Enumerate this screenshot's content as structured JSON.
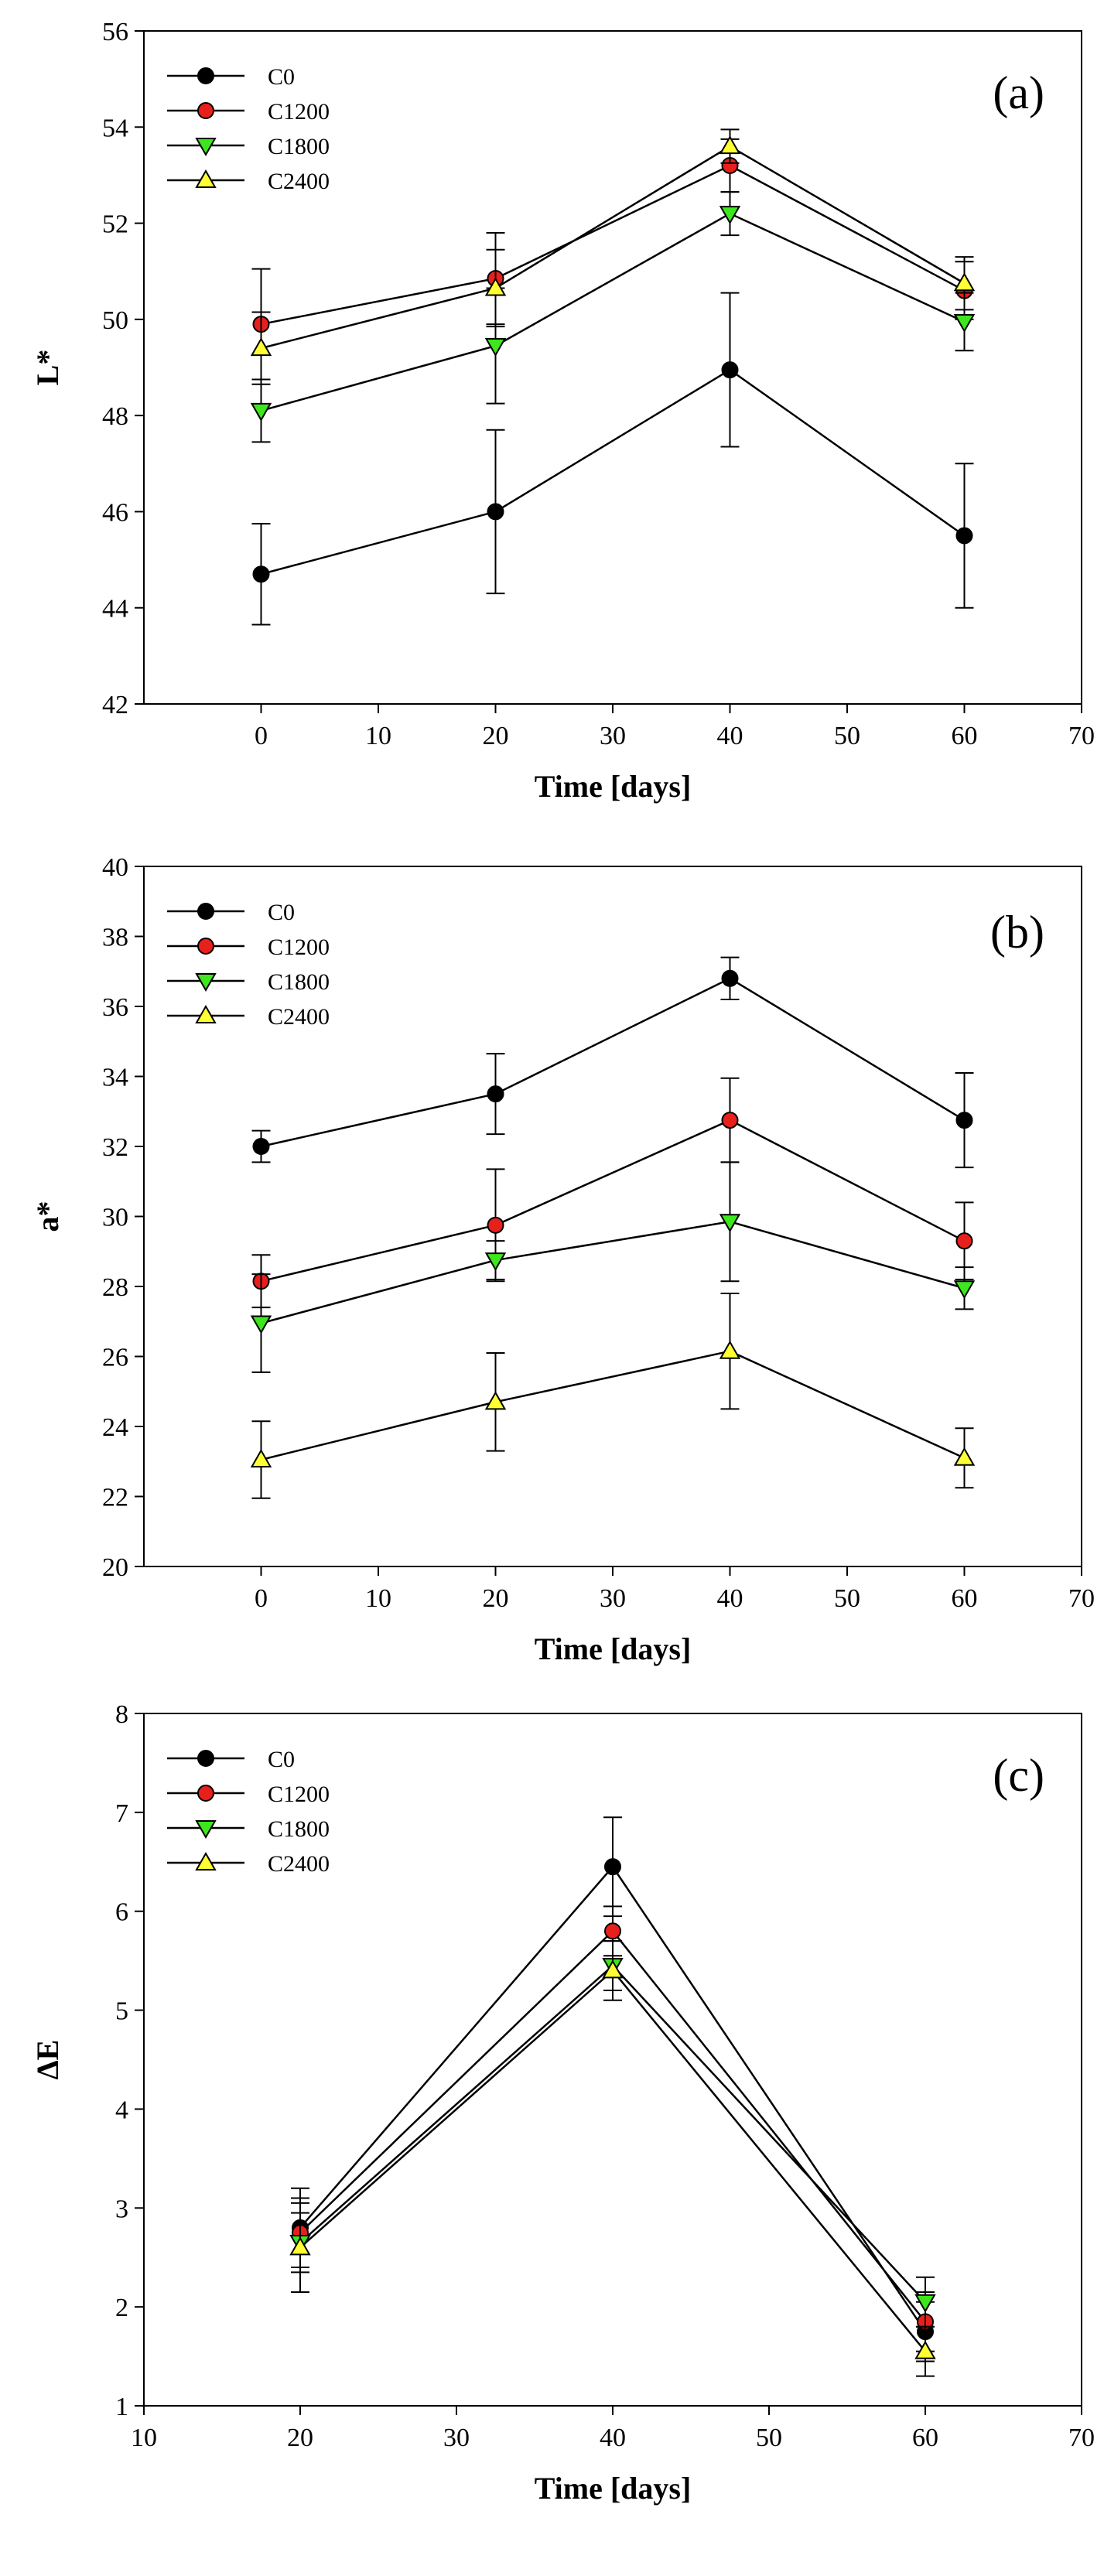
{
  "chart_data": [
    {
      "type": "line",
      "panel_label": "(a)",
      "xlabel": "Time [days]",
      "ylabel": "L*",
      "xlim": [
        -10,
        70
      ],
      "ylim": [
        42,
        56
      ],
      "x_ticks": [
        0,
        10,
        20,
        30,
        40,
        50,
        60,
        70
      ],
      "y_ticks": [
        42,
        44,
        46,
        48,
        50,
        52,
        54,
        56
      ],
      "legend_position": "top-left",
      "x": [
        0,
        20,
        40,
        60
      ],
      "series": [
        {
          "name": "C0",
          "marker": "circle",
          "color": "#000000",
          "values": [
            44.7,
            46.0,
            48.95,
            45.5
          ],
          "errors": [
            1.05,
            1.7,
            1.6,
            1.5
          ]
        },
        {
          "name": "C1200",
          "marker": "circle",
          "color": "#e8201c",
          "values": [
            49.9,
            50.85,
            53.2,
            50.6
          ],
          "errors": [
            1.15,
            0.95,
            0.55,
            0.6
          ]
        },
        {
          "name": "C1800",
          "marker": "triangle-down",
          "color": "#3ee61e",
          "values": [
            48.1,
            49.45,
            52.2,
            49.95
          ],
          "errors": [
            0.65,
            1.2,
            0.45,
            0.6
          ]
        },
        {
          "name": "C2400",
          "marker": "triangle-up",
          "color": "#ffff33",
          "values": [
            49.4,
            50.65,
            53.6,
            50.75
          ],
          "errors": [
            0.75,
            0.8,
            0.35,
            0.55
          ]
        }
      ]
    },
    {
      "type": "line",
      "panel_label": "(b)",
      "xlabel": "Time [days]",
      "ylabel": "a*",
      "xlim": [
        -10,
        70
      ],
      "ylim": [
        20,
        40
      ],
      "x_ticks": [
        0,
        10,
        20,
        30,
        40,
        50,
        60,
        70
      ],
      "y_ticks": [
        20,
        22,
        24,
        26,
        28,
        30,
        32,
        34,
        36,
        38,
        40
      ],
      "legend_position": "top-left",
      "x": [
        0,
        20,
        40,
        60
      ],
      "series": [
        {
          "name": "C0",
          "marker": "circle",
          "color": "#000000",
          "values": [
            32.0,
            33.5,
            36.8,
            32.75
          ],
          "errors": [
            0.45,
            1.15,
            0.6,
            1.35
          ]
        },
        {
          "name": "C1200",
          "marker": "circle",
          "color": "#e8201c",
          "values": [
            28.15,
            29.75,
            32.75,
            29.3
          ],
          "errors": [
            0.75,
            1.6,
            1.2,
            1.1
          ]
        },
        {
          "name": "C1800",
          "marker": "triangle-down",
          "color": "#3ee61e",
          "values": [
            26.95,
            28.75,
            29.85,
            27.95
          ],
          "errors": [
            1.4,
            0.55,
            1.7,
            0.6
          ]
        },
        {
          "name": "C2400",
          "marker": "triangle-up",
          "color": "#ffff33",
          "values": [
            23.05,
            24.7,
            26.15,
            23.1
          ],
          "errors": [
            1.1,
            1.4,
            1.65,
            0.85
          ]
        }
      ]
    },
    {
      "type": "line",
      "panel_label": "(c)",
      "xlabel": "Time [days]",
      "ylabel": "ΔE",
      "xlim": [
        10,
        70
      ],
      "ylim": [
        1,
        8
      ],
      "x_ticks": [
        10,
        20,
        30,
        40,
        50,
        60,
        70
      ],
      "y_ticks": [
        1,
        2,
        3,
        4,
        5,
        6,
        7,
        8
      ],
      "legend_position": "top-left",
      "x": [
        20,
        40,
        60
      ],
      "series": [
        {
          "name": "C0",
          "marker": "circle",
          "color": "#000000",
          "values": [
            2.8,
            6.45,
            1.75
          ],
          "errors": [
            0.4,
            0.5,
            0.3
          ]
        },
        {
          "name": "C1200",
          "marker": "circle",
          "color": "#e8201c",
          "values": [
            2.75,
            5.8,
            1.85
          ],
          "errors": [
            0.35,
            0.25,
            0.3
          ]
        },
        {
          "name": "C1800",
          "marker": "triangle-down",
          "color": "#3ee61e",
          "values": [
            2.65,
            5.45,
            2.05
          ],
          "errors": [
            0.3,
            0.25,
            0.25
          ]
        },
        {
          "name": "C2400",
          "marker": "triangle-up",
          "color": "#ffff33",
          "values": [
            2.6,
            5.4,
            1.55
          ],
          "errors": [
            0.45,
            0.3,
            0.25
          ]
        }
      ]
    }
  ]
}
